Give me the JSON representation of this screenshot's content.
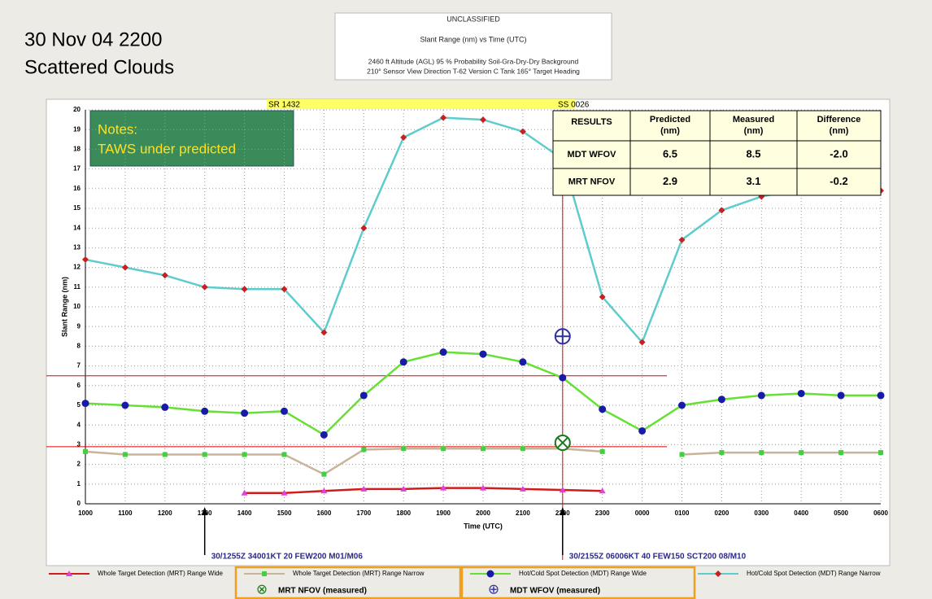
{
  "header": {
    "title_lines": [
      "30 Nov 04 2200",
      "Scattered Clouds"
    ],
    "info_lines": [
      "UNCLASSIFIED",
      "Slant Range (nm) vs Time (UTC)",
      "2460 ft Altitude (AGL)   95 % Probability   Soil-Gra-Dry-Dry Background",
      "210° Sensor View Direction   T-62 Version C Tank   165° Target Heading"
    ]
  },
  "chart_data": {
    "type": "line",
    "x_label": "Time (UTC)",
    "y_label": "Slant Range (nm)",
    "categories": [
      "1000",
      "1100",
      "1200",
      "1300",
      "1400",
      "1500",
      "1600",
      "1700",
      "1800",
      "1900",
      "2000",
      "2100",
      "2200",
      "2300",
      "0000",
      "0100",
      "0200",
      "0300",
      "0400",
      "0500",
      "0600"
    ],
    "ylim": [
      0,
      20
    ],
    "yticks": [
      0,
      1,
      2,
      3,
      4,
      5,
      6,
      7,
      8,
      9,
      10,
      11,
      12,
      13,
      14,
      15,
      16,
      17,
      18,
      19,
      20
    ],
    "grid": true,
    "series": [
      {
        "name": "Whole Target Detection (MRT) Range  Wide",
        "color": "#d01c1c",
        "marker": "triangle",
        "marker_color": "#e040e0",
        "values": [
          null,
          null,
          null,
          null,
          0.55,
          0.55,
          0.65,
          0.75,
          0.75,
          0.8,
          0.8,
          0.75,
          0.7,
          0.65,
          null,
          null,
          null,
          null,
          null,
          null,
          null
        ]
      },
      {
        "name": "Whole Target Detection (MRT) Range  Narrow",
        "color": "#c8b49a",
        "marker": "square",
        "marker_color": "#40d040",
        "values": [
          2.65,
          2.5,
          2.5,
          2.5,
          2.5,
          2.5,
          1.5,
          2.75,
          2.8,
          2.8,
          2.8,
          2.8,
          2.8,
          2.65,
          null,
          2.5,
          2.6,
          2.6,
          2.6,
          2.6,
          2.6
        ]
      },
      {
        "name": "Hot/Cold Spot Detection (MDT) Range  Wide",
        "color": "#66e033",
        "marker": "circle",
        "marker_color": "#1a1aa8",
        "values": [
          5.1,
          5.0,
          4.9,
          4.7,
          4.6,
          4.7,
          3.5,
          5.5,
          7.2,
          7.7,
          7.6,
          7.2,
          6.4,
          4.8,
          3.7,
          5.0,
          5.3,
          5.5,
          5.6,
          5.5,
          5.5
        ]
      },
      {
        "name": "Hot/Cold Spot Detection (MDT) Range  Narrow",
        "color": "#5ecccc",
        "marker": "diamond",
        "marker_color": "#c82020",
        "values": [
          12.4,
          12.0,
          11.6,
          11.0,
          10.9,
          10.9,
          8.7,
          14.0,
          18.6,
          19.6,
          19.5,
          18.9,
          17.5,
          10.5,
          8.2,
          13.4,
          14.9,
          15.6,
          16.0,
          16.0,
          15.9
        ]
      }
    ],
    "measured": [
      {
        "name": "MRT NFOV (measured)",
        "category_index": 12,
        "value": 3.1,
        "symbol": "⊗",
        "color": "#1a7a1a"
      },
      {
        "name": "MDT WFOV (measured)",
        "category_index": 12,
        "value": 8.5,
        "symbol": "⊕",
        "color": "#3030a0"
      }
    ],
    "predicted_lines": [
      6.5,
      2.9
    ],
    "sun": [
      "SR 1432",
      "SS 0026"
    ],
    "notes": [
      "Notes:",
      "TAWS under predicted"
    ],
    "weather": [
      "30/1255Z  34001KT 20 FEW200 M01/M06",
      "30/2155Z  06006KT 40 FEW150 SCT200 08/M10"
    ],
    "results": {
      "header": [
        "RESULTS",
        "Predicted\n(nm)",
        "Measured\n(nm)",
        "Difference\n(nm)"
      ],
      "rows": [
        [
          "MDT WFOV",
          "6.5",
          "8.5",
          "-2.0"
        ],
        [
          "MRT NFOV",
          "2.9",
          "3.1",
          "-0.2"
        ]
      ]
    }
  }
}
